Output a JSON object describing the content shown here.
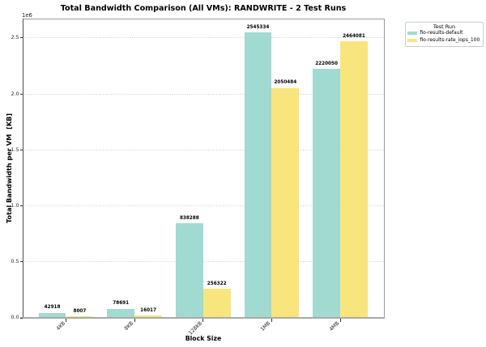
{
  "chart_data": {
    "type": "bar",
    "title": "Total Bandwidth Comparison (All VMs): RANDWRITE - 2 Test Runs",
    "xlabel": "Block Size",
    "ylabel": "Total Bandwidth per VM  [KB]",
    "y_offset_text": "1e6",
    "categories": [
      "4KB",
      "8KB",
      "128KB",
      "1MB",
      "4MB"
    ],
    "series": [
      {
        "name": "fio-results-default",
        "color": "rgba(153,215,204,0.92)",
        "values": [
          42918,
          78691,
          838288,
          2545334,
          2220050
        ]
      },
      {
        "name": "fio-results-rate_iops_100",
        "color": "rgba(249,227,114,0.92)",
        "values": [
          8007,
          16017,
          256322,
          2050484,
          2464081
        ]
      }
    ],
    "bar_value_labels": true,
    "legend": {
      "title": "Test Run",
      "position": "upper right outside plot"
    },
    "ylim": [
      0,
      2673000
    ],
    "yticks": [
      0.0,
      0.5,
      1.0,
      1.5,
      2.0,
      2.5
    ],
    "ytick_scale": 1000000,
    "grid": "horizontal dotted"
  }
}
